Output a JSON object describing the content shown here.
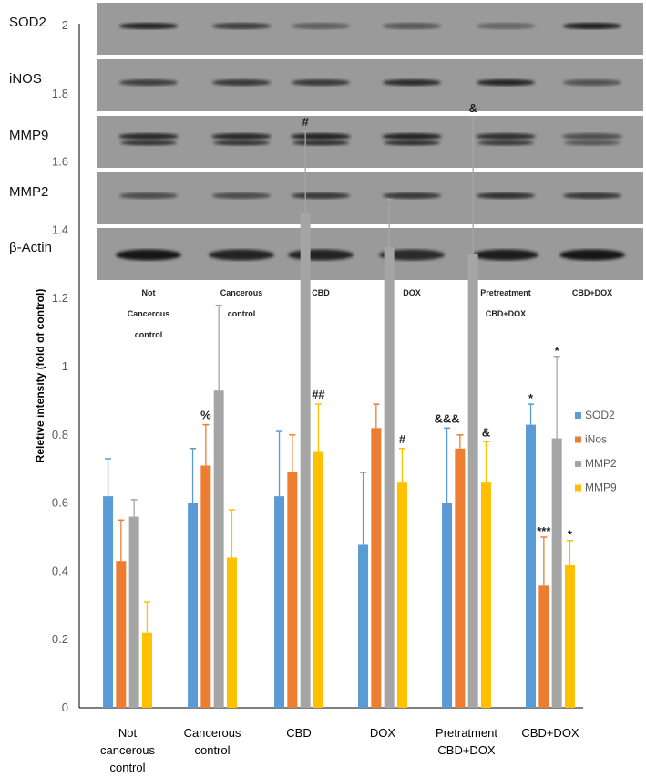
{
  "blot": {
    "rows": [
      "SOD2",
      "iNOS",
      "MMP9",
      "MMP2",
      "β-Actin"
    ],
    "lanes": [
      [
        "Not",
        "Cancerous",
        "control"
      ],
      [
        "Cancerous",
        "control"
      ],
      [
        "CBD"
      ],
      [
        "DOX"
      ],
      [
        "Pretreatment",
        "CBD+DOX"
      ],
      [
        "CBD+DOX"
      ]
    ]
  },
  "chart_data": {
    "type": "bar",
    "title": "",
    "xlabel": "",
    "ylabel": "Reletive intensity (fold of control)",
    "ylim": [
      0,
      2
    ],
    "yticks": [
      "0",
      "0.2",
      "0.4",
      "0.6",
      "0.8",
      "1",
      "1.2",
      "1.4",
      "1.6",
      "1.8",
      "2"
    ],
    "grid": false,
    "legend_position": "top-right",
    "categories": [
      [
        "Not",
        "cancerous",
        "control"
      ],
      [
        "Cancerous",
        "control"
      ],
      [
        "CBD"
      ],
      [
        "DOX"
      ],
      [
        "Pretratment",
        "CBD+DOX"
      ],
      [
        "CBD+DOX"
      ]
    ],
    "series": [
      {
        "name": "SOD2",
        "color": "#5b9bd5",
        "values": [
          0.62,
          0.6,
          0.62,
          0.48,
          0.6,
          0.83
        ],
        "error": [
          0.11,
          0.16,
          0.19,
          0.21,
          0.22,
          0.06
        ]
      },
      {
        "name": "iNos",
        "color": "#ed7d31",
        "values": [
          0.43,
          0.71,
          0.69,
          0.82,
          0.76,
          0.36
        ],
        "error": [
          0.12,
          0.12,
          0.11,
          0.07,
          0.04,
          0.14
        ]
      },
      {
        "name": "MMP2",
        "color": "#a5a5a5",
        "values": [
          0.56,
          0.93,
          1.45,
          1.35,
          1.33,
          0.79
        ],
        "error": [
          0.05,
          0.25,
          0.24,
          0.14,
          0.4,
          0.24
        ]
      },
      {
        "name": "MMP9",
        "color": "#ffc000",
        "values": [
          0.22,
          0.44,
          0.75,
          0.66,
          0.66,
          0.42
        ],
        "error": [
          0.09,
          0.14,
          0.14,
          0.1,
          0.12,
          0.07
        ]
      }
    ],
    "annotations": [
      {
        "category": 1,
        "series": 1,
        "text": "%"
      },
      {
        "category": 2,
        "series": 2,
        "text": "#"
      },
      {
        "category": 2,
        "series": 3,
        "text": "##"
      },
      {
        "category": 3,
        "series": 3,
        "text": "#"
      },
      {
        "category": 4,
        "series": 0,
        "text": "&&&"
      },
      {
        "category": 4,
        "series": 2,
        "text": "&"
      },
      {
        "category": 4,
        "series": 3,
        "text": "&"
      },
      {
        "category": 5,
        "series": 0,
        "text": "*"
      },
      {
        "category": 5,
        "series": 1,
        "text": "***"
      },
      {
        "category": 5,
        "series": 2,
        "text": "*"
      },
      {
        "category": 5,
        "series": 3,
        "text": "*"
      }
    ]
  }
}
